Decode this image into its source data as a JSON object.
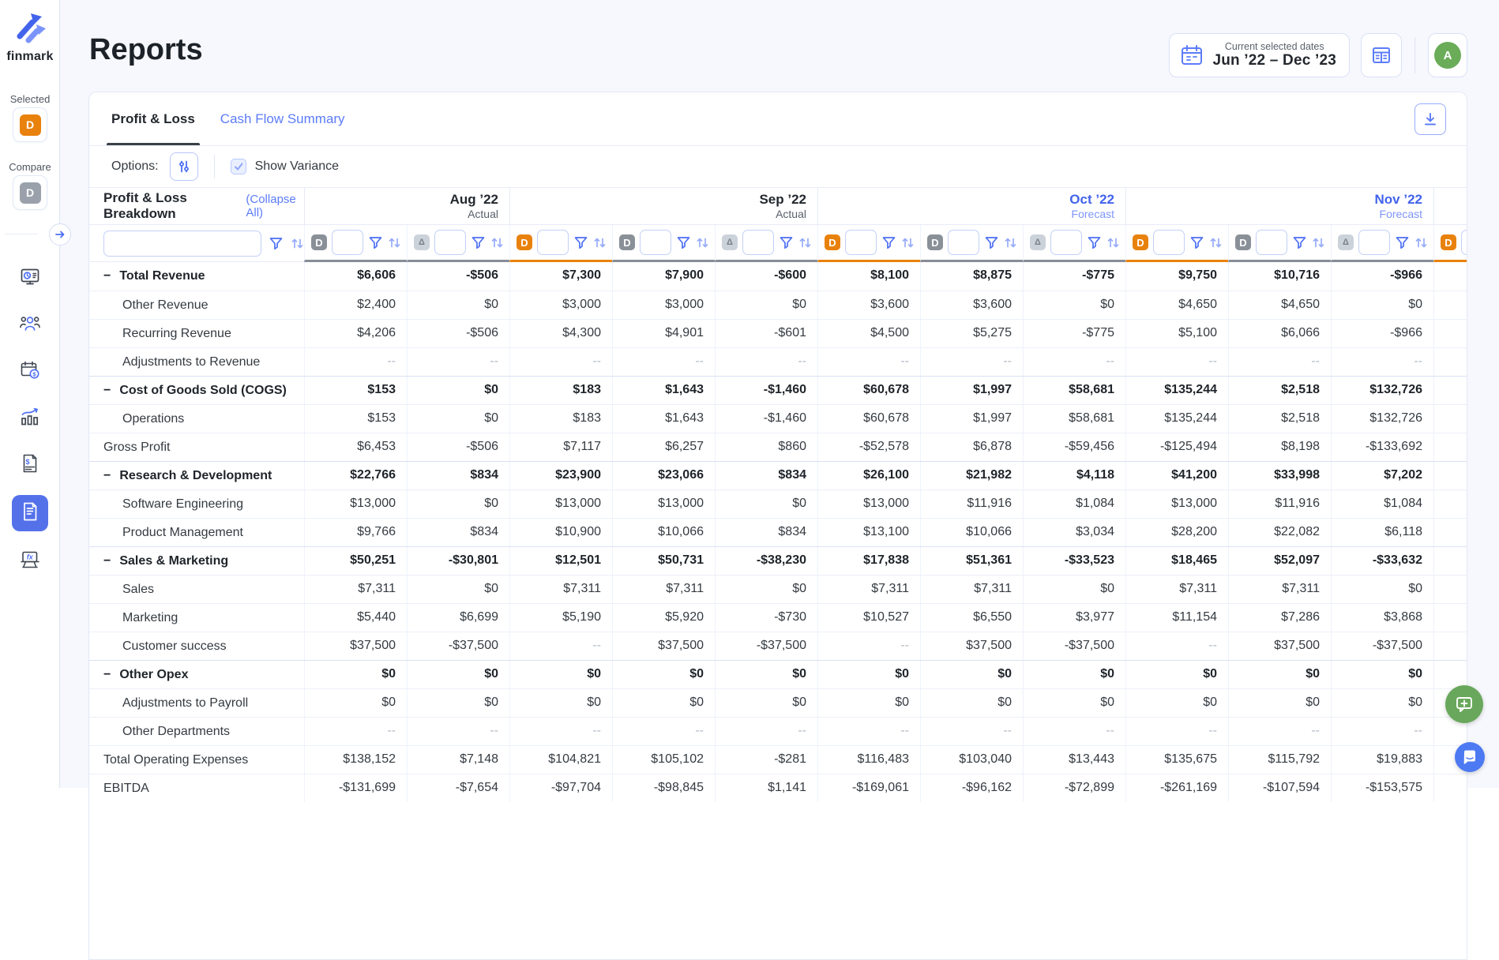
{
  "sidebar": {
    "logo_text": "finmark",
    "selected_label": "Selected",
    "selected_badge": "D",
    "compare_label": "Compare",
    "compare_badge": "D",
    "nav": [
      {
        "name": "dashboard",
        "active": false
      },
      {
        "name": "hiring",
        "active": false
      },
      {
        "name": "payroll",
        "active": false
      },
      {
        "name": "metrics",
        "active": false
      },
      {
        "name": "expenses",
        "active": false
      },
      {
        "name": "reports",
        "active": true
      },
      {
        "name": "formulas",
        "active": false
      }
    ]
  },
  "header": {
    "title": "Reports",
    "date_selector_label": "Current selected dates",
    "date_selector_value": "Jun ’22 – Dec ’23",
    "avatar_initial": "A"
  },
  "report": {
    "tabs": [
      {
        "label": "Profit & Loss",
        "active": true
      },
      {
        "label": "Cash Flow Summary",
        "active": false
      }
    ],
    "options_label": "Options:",
    "show_variance_label": "Show Variance",
    "show_variance_checked": true,
    "breakdown_title": "Profit & Loss Breakdown",
    "collapse_all_label": "(Collapse All)",
    "month_groups": [
      {
        "label": "Aug ’22",
        "sublabel": "Actual",
        "kind": "actual",
        "span": 2
      },
      {
        "label": "Sep ’22",
        "sublabel": "Actual",
        "kind": "actual",
        "span": 3
      },
      {
        "label": "Oct ’22",
        "sublabel": "Forecast",
        "kind": "forecast",
        "span": 3
      },
      {
        "label": "Nov ’22",
        "sublabel": "Forecast",
        "kind": "forecast",
        "span": 3
      },
      {
        "label": "",
        "sublabel": "",
        "kind": "forecast",
        "span": 1
      }
    ],
    "columns": [
      {
        "badge": "D",
        "variant": "compare"
      },
      {
        "badge": "Δ",
        "variant": "variance"
      },
      {
        "badge": "D",
        "variant": "selected"
      },
      {
        "badge": "D",
        "variant": "compare"
      },
      {
        "badge": "Δ",
        "variant": "variance"
      },
      {
        "badge": "D",
        "variant": "selected"
      },
      {
        "badge": "D",
        "variant": "compare"
      },
      {
        "badge": "Δ",
        "variant": "variance"
      },
      {
        "badge": "D",
        "variant": "selected"
      },
      {
        "badge": "D",
        "variant": "compare"
      },
      {
        "badge": "Δ",
        "variant": "variance"
      },
      {
        "badge": "D",
        "variant": "selected"
      }
    ],
    "rows": [
      {
        "label": "Total Revenue",
        "type": "group",
        "values": [
          "$6,606",
          "-$506",
          "$7,300",
          "$7,900",
          "-$600",
          "$8,100",
          "$8,875",
          "-$775",
          "$9,750",
          "$10,716",
          "-$966",
          ""
        ]
      },
      {
        "label": "Other Revenue",
        "type": "child",
        "values": [
          "$2,400",
          "$0",
          "$3,000",
          "$3,000",
          "$0",
          "$3,600",
          "$3,600",
          "$0",
          "$4,650",
          "$4,650",
          "$0",
          ""
        ]
      },
      {
        "label": "Recurring Revenue",
        "type": "child",
        "values": [
          "$4,206",
          "-$506",
          "$4,300",
          "$4,901",
          "-$601",
          "$4,500",
          "$5,275",
          "-$775",
          "$5,100",
          "$6,066",
          "-$966",
          ""
        ]
      },
      {
        "label": "Adjustments to Revenue",
        "type": "child",
        "values": [
          "--",
          "--",
          "--",
          "--",
          "--",
          "--",
          "--",
          "--",
          "--",
          "--",
          "--",
          ""
        ]
      },
      {
        "label": "Cost of Goods Sold (COGS)",
        "type": "group",
        "values": [
          "$153",
          "$0",
          "$183",
          "$1,643",
          "-$1,460",
          "$60,678",
          "$1,997",
          "$58,681",
          "$135,244",
          "$2,518",
          "$132,726",
          ""
        ]
      },
      {
        "label": "Operations",
        "type": "child",
        "values": [
          "$153",
          "$0",
          "$183",
          "$1,643",
          "-$1,460",
          "$60,678",
          "$1,997",
          "$58,681",
          "$135,244",
          "$2,518",
          "$132,726",
          ""
        ]
      },
      {
        "label": "Gross Profit",
        "type": "summary",
        "values": [
          "$6,453",
          "-$506",
          "$7,117",
          "$6,257",
          "$860",
          "-$52,578",
          "$6,878",
          "-$59,456",
          "-$125,494",
          "$8,198",
          "-$133,692",
          ""
        ]
      },
      {
        "label": "Research & Development",
        "type": "group",
        "values": [
          "$22,766",
          "$834",
          "$23,900",
          "$23,066",
          "$834",
          "$26,100",
          "$21,982",
          "$4,118",
          "$41,200",
          "$33,998",
          "$7,202",
          ""
        ]
      },
      {
        "label": "Software Engineering",
        "type": "child",
        "values": [
          "$13,000",
          "$0",
          "$13,000",
          "$13,000",
          "$0",
          "$13,000",
          "$11,916",
          "$1,084",
          "$13,000",
          "$11,916",
          "$1,084",
          ""
        ]
      },
      {
        "label": "Product Management",
        "type": "child",
        "values": [
          "$9,766",
          "$834",
          "$10,900",
          "$10,066",
          "$834",
          "$13,100",
          "$10,066",
          "$3,034",
          "$28,200",
          "$22,082",
          "$6,118",
          ""
        ]
      },
      {
        "label": "Sales & Marketing",
        "type": "group",
        "values": [
          "$50,251",
          "-$30,801",
          "$12,501",
          "$50,731",
          "-$38,230",
          "$17,838",
          "$51,361",
          "-$33,523",
          "$18,465",
          "$52,097",
          "-$33,632",
          ""
        ]
      },
      {
        "label": "Sales",
        "type": "child",
        "values": [
          "$7,311",
          "$0",
          "$7,311",
          "$7,311",
          "$0",
          "$7,311",
          "$7,311",
          "$0",
          "$7,311",
          "$7,311",
          "$0",
          ""
        ]
      },
      {
        "label": "Marketing",
        "type": "child",
        "values": [
          "$5,440",
          "$6,699",
          "$5,190",
          "$5,920",
          "-$730",
          "$10,527",
          "$6,550",
          "$3,977",
          "$11,154",
          "$7,286",
          "$3,868",
          ""
        ]
      },
      {
        "label": "Customer success",
        "type": "child",
        "values": [
          "$37,500",
          "-$37,500",
          "--",
          "$37,500",
          "-$37,500",
          "--",
          "$37,500",
          "-$37,500",
          "--",
          "$37,500",
          "-$37,500",
          ""
        ]
      },
      {
        "label": "Other Opex",
        "type": "group",
        "values": [
          "$0",
          "$0",
          "$0",
          "$0",
          "$0",
          "$0",
          "$0",
          "$0",
          "$0",
          "$0",
          "$0",
          ""
        ]
      },
      {
        "label": "Adjustments to Payroll",
        "type": "child",
        "values": [
          "$0",
          "$0",
          "$0",
          "$0",
          "$0",
          "$0",
          "$0",
          "$0",
          "$0",
          "$0",
          "$0",
          ""
        ]
      },
      {
        "label": "Other Departments",
        "type": "child",
        "values": [
          "--",
          "--",
          "--",
          "--",
          "--",
          "--",
          "--",
          "--",
          "--",
          "--",
          "--",
          ""
        ]
      },
      {
        "label": "Total Operating Expenses",
        "type": "summary",
        "values": [
          "$138,152",
          "$7,148",
          "$104,821",
          "$105,102",
          "-$281",
          "$116,483",
          "$103,040",
          "$13,443",
          "$135,675",
          "$115,792",
          "$19,883",
          ""
        ]
      },
      {
        "label": "EBITDA",
        "type": "summary",
        "values": [
          "-$131,699",
          "-$7,654",
          "-$97,704",
          "-$98,845",
          "$1,141",
          "-$169,061",
          "-$96,162",
          "-$72,899",
          "-$261,169",
          "-$107,594",
          "-$153,575",
          ""
        ]
      }
    ]
  },
  "colors": {
    "accent_blue": "#4c6ef5",
    "forecast_blue": "#4263eb",
    "selected_orange": "#e8820d",
    "compare_gray": "#8a9098",
    "avatar_green": "#6aac58"
  }
}
